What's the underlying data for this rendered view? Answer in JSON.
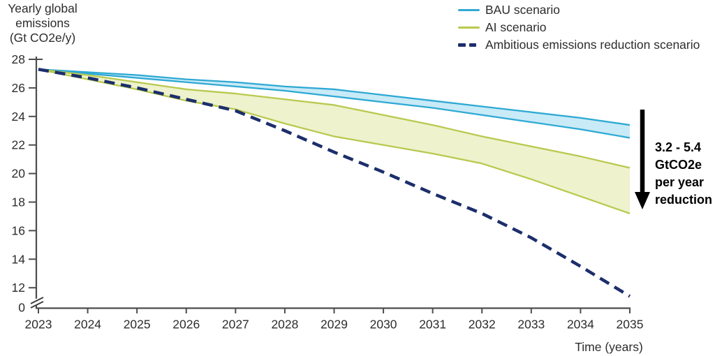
{
  "y_axis_title": {
    "lines": [
      "Yearly global",
      "emissions",
      "(Gt CO2e/y)"
    ]
  },
  "legend": {
    "items": [
      {
        "label": "BAU scenario",
        "color": "#2ea9d3",
        "style": "solid"
      },
      {
        "label": "AI scenario",
        "color": "#b9c94f",
        "style": "solid"
      },
      {
        "label": "Ambitious emissions reduction scenario",
        "color": "#1c2e6b",
        "style": "dashed"
      }
    ]
  },
  "annotation": {
    "lines": [
      "3.2 - 5.4",
      "GtCO2e",
      "per year",
      "reduction"
    ],
    "arrow": "down-arrow"
  },
  "chart_data": {
    "type": "area",
    "title": "",
    "xlabel": "Time (years)",
    "ylabel": "Yearly global emissions (Gt CO2e/y)",
    "x": [
      2023,
      2024,
      2025,
      2026,
      2027,
      2028,
      2029,
      2030,
      2031,
      2032,
      2033,
      2034,
      2035
    ],
    "bands": [
      {
        "name": "BAU scenario",
        "line_color": "#2ea9d3",
        "fill_color": "#c9eaf7",
        "upper": [
          27.3,
          27.1,
          26.9,
          26.6,
          26.4,
          26.1,
          25.9,
          25.5,
          25.1,
          24.7,
          24.3,
          23.9,
          23.4
        ],
        "lower": [
          27.3,
          27.0,
          26.7,
          26.4,
          26.1,
          25.8,
          25.4,
          25.0,
          24.6,
          24.1,
          23.6,
          23.1,
          22.5
        ]
      },
      {
        "name": "AI scenario",
        "line_color": "#b9c94f",
        "fill_color": "#eef2cd",
        "upper": [
          27.3,
          26.9,
          26.4,
          25.9,
          25.6,
          25.2,
          24.8,
          24.1,
          23.4,
          22.6,
          21.9,
          21.2,
          20.4
        ],
        "lower": [
          27.3,
          26.6,
          25.9,
          25.1,
          24.5,
          23.5,
          22.6,
          22.0,
          21.4,
          20.7,
          19.6,
          18.4,
          17.2
        ]
      }
    ],
    "lines": [
      {
        "name": "Ambitious emissions reduction scenario",
        "color": "#1c2e6b",
        "style": "dashed",
        "values": [
          27.3,
          26.7,
          26.0,
          25.2,
          24.4,
          23.0,
          21.5,
          20.1,
          18.6,
          17.2,
          15.5,
          13.5,
          11.4
        ]
      }
    ],
    "y_axis": {
      "ticks": [
        28,
        26,
        24,
        22,
        20,
        18,
        16,
        14,
        12
      ],
      "break_label": "0",
      "axis_break": true,
      "ylim": [
        12,
        28
      ]
    },
    "grid": false,
    "legend_position": "top-right"
  }
}
